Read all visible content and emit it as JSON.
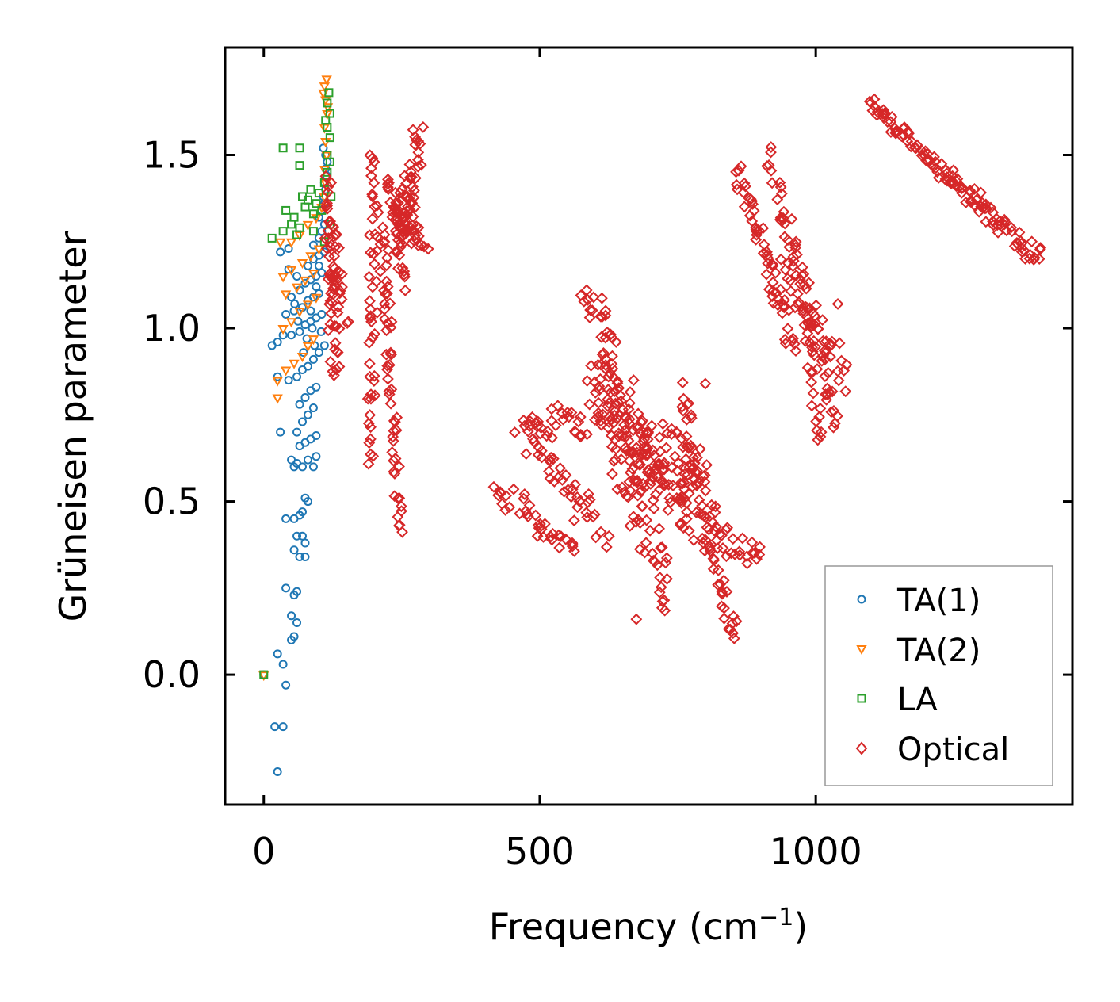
{
  "chart_data": {
    "type": "scatter",
    "title": "",
    "xlabel": "Frequency (cm",
    "xlabel_superscript": "−1",
    "xlabel_suffix": ")",
    "ylabel": "Grüneisen parameter",
    "xlim": [
      -70,
      1465
    ],
    "ylim": [
      -0.375,
      1.81
    ],
    "xticks": [
      0,
      500,
      1000
    ],
    "xtick_labels": [
      "0",
      "500",
      "1000"
    ],
    "yticks": [
      0.0,
      0.5,
      1.0,
      1.5
    ],
    "ytick_labels": [
      "0.0",
      "0.5",
      "1.0",
      "1.5"
    ],
    "grid": false,
    "legend_position": "lower-right",
    "series": [
      {
        "name": "TA(1)",
        "marker": "circle",
        "color": "#1f77b4",
        "points": [
          [
            0,
            0.0
          ],
          [
            25,
            -0.28
          ],
          [
            20,
            -0.15
          ],
          [
            35,
            -0.15
          ],
          [
            40,
            -0.03
          ],
          [
            25,
            0.06
          ],
          [
            35,
            0.03
          ],
          [
            50,
            0.1
          ],
          [
            55,
            0.11
          ],
          [
            60,
            0.15
          ],
          [
            50,
            0.17
          ],
          [
            40,
            0.25
          ],
          [
            55,
            0.23
          ],
          [
            60,
            0.24
          ],
          [
            55,
            0.36
          ],
          [
            65,
            0.34
          ],
          [
            75,
            0.34
          ],
          [
            60,
            0.4
          ],
          [
            70,
            0.4
          ],
          [
            75,
            0.38
          ],
          [
            40,
            0.45
          ],
          [
            55,
            0.45
          ],
          [
            65,
            0.46
          ],
          [
            70,
            0.47
          ],
          [
            75,
            0.51
          ],
          [
            80,
            0.5
          ],
          [
            55,
            0.6
          ],
          [
            60,
            0.61
          ],
          [
            70,
            0.6
          ],
          [
            80,
            0.62
          ],
          [
            90,
            0.6
          ],
          [
            95,
            0.63
          ],
          [
            50,
            0.62
          ],
          [
            65,
            0.66
          ],
          [
            75,
            0.67
          ],
          [
            85,
            0.68
          ],
          [
            95,
            0.69
          ],
          [
            30,
            0.7
          ],
          [
            60,
            0.7
          ],
          [
            70,
            0.73
          ],
          [
            80,
            0.75
          ],
          [
            90,
            0.77
          ],
          [
            65,
            0.78
          ],
          [
            75,
            0.8
          ],
          [
            85,
            0.82
          ],
          [
            95,
            0.83
          ],
          [
            25,
            0.86
          ],
          [
            45,
            0.85
          ],
          [
            60,
            0.86
          ],
          [
            70,
            0.88
          ],
          [
            80,
            0.89
          ],
          [
            90,
            0.91
          ],
          [
            100,
            0.93
          ],
          [
            110,
            0.95
          ],
          [
            15,
            0.95
          ],
          [
            25,
            0.96
          ],
          [
            35,
            0.98
          ],
          [
            50,
            0.98
          ],
          [
            65,
            0.99
          ],
          [
            75,
            1.01
          ],
          [
            85,
            1.02
          ],
          [
            95,
            1.03
          ],
          [
            105,
            1.04
          ],
          [
            40,
            1.04
          ],
          [
            55,
            1.05
          ],
          [
            70,
            1.06
          ],
          [
            80,
            1.08
          ],
          [
            90,
            1.09
          ],
          [
            100,
            1.1
          ],
          [
            50,
            1.09
          ],
          [
            65,
            1.11
          ],
          [
            75,
            1.13
          ],
          [
            85,
            1.14
          ],
          [
            95,
            1.15
          ],
          [
            105,
            1.16
          ],
          [
            45,
            1.17
          ],
          [
            60,
            1.15
          ],
          [
            80,
            1.18
          ],
          [
            90,
            1.2
          ],
          [
            100,
            1.21
          ],
          [
            110,
            1.22
          ],
          [
            30,
            1.22
          ],
          [
            45,
            1.23
          ],
          [
            90,
            1.24
          ],
          [
            100,
            1.26
          ],
          [
            105,
            1.28
          ],
          [
            110,
            1.3
          ],
          [
            100,
            1.32
          ],
          [
            105,
            1.34
          ],
          [
            110,
            1.36
          ],
          [
            108,
            1.38
          ],
          [
            112,
            1.4
          ],
          [
            110,
            1.42
          ],
          [
            114,
            1.44
          ],
          [
            112,
            1.46
          ],
          [
            115,
            1.48
          ],
          [
            112,
            1.5
          ],
          [
            108,
            1.52
          ],
          [
            100,
            1.18
          ],
          [
            95,
            1.12
          ],
          [
            85,
            1.05
          ],
          [
            78,
            0.97
          ],
          [
            92,
            0.95
          ],
          [
            104,
            0.99
          ],
          [
            88,
            1.0
          ],
          [
            72,
            0.93
          ],
          [
            62,
            1.02
          ],
          [
            56,
            1.07
          ]
        ]
      },
      {
        "name": "TA(2)",
        "marker": "triangle-down",
        "color": "#ff7f0e",
        "points": [
          [
            0,
            0.0
          ],
          [
            25,
            0.8
          ],
          [
            25,
            0.85
          ],
          [
            40,
            0.88
          ],
          [
            55,
            0.9
          ],
          [
            70,
            0.92
          ],
          [
            80,
            0.95
          ],
          [
            90,
            0.97
          ],
          [
            35,
            1.0
          ],
          [
            50,
            1.02
          ],
          [
            65,
            1.05
          ],
          [
            80,
            1.07
          ],
          [
            95,
            1.09
          ],
          [
            40,
            1.1
          ],
          [
            60,
            1.12
          ],
          [
            75,
            1.14
          ],
          [
            90,
            1.16
          ],
          [
            35,
            1.15
          ],
          [
            50,
            1.17
          ],
          [
            70,
            1.19
          ],
          [
            85,
            1.21
          ],
          [
            100,
            1.23
          ],
          [
            30,
            1.25
          ],
          [
            50,
            1.25
          ],
          [
            65,
            1.27
          ],
          [
            80,
            1.3
          ],
          [
            95,
            1.32
          ],
          [
            105,
            1.35
          ],
          [
            110,
            1.38
          ],
          [
            112,
            1.42
          ],
          [
            110,
            1.46
          ],
          [
            114,
            1.5
          ],
          [
            112,
            1.54
          ],
          [
            110,
            1.58
          ],
          [
            115,
            1.62
          ],
          [
            112,
            1.66
          ],
          [
            110,
            1.7
          ],
          [
            114,
            1.72
          ],
          [
            108,
            1.68
          ],
          [
            116,
            1.64
          ]
        ]
      },
      {
        "name": "LA",
        "marker": "square",
        "color": "#2ca02c",
        "points": [
          [
            0,
            0.0
          ],
          [
            15,
            1.26
          ],
          [
            35,
            1.28
          ],
          [
            50,
            1.3
          ],
          [
            40,
            1.34
          ],
          [
            55,
            1.32
          ],
          [
            65,
            1.29
          ],
          [
            75,
            1.35
          ],
          [
            70,
            1.38
          ],
          [
            80,
            1.37
          ],
          [
            90,
            1.33
          ],
          [
            95,
            1.36
          ],
          [
            100,
            1.39
          ],
          [
            60,
            1.27
          ],
          [
            85,
            1.4
          ],
          [
            110,
            1.42
          ],
          [
            120,
            1.3
          ],
          [
            115,
            1.45
          ],
          [
            120,
            1.48
          ],
          [
            115,
            1.5
          ],
          [
            120,
            1.55
          ],
          [
            115,
            1.58
          ],
          [
            120,
            1.62
          ],
          [
            115,
            1.65
          ],
          [
            118,
            1.68
          ],
          [
            112,
            1.6
          ],
          [
            65,
            1.47
          ],
          [
            35,
            1.52
          ],
          [
            65,
            1.52
          ],
          [
            105,
            1.34
          ],
          [
            122,
            1.38
          ],
          [
            110,
            1.25
          ],
          [
            90,
            1.28
          ]
        ]
      },
      {
        "name": "Optical",
        "marker": "diamond",
        "color": "#d62728",
        "segments": [
          {
            "from": [
              115,
              1.42
            ],
            "to": [
              130,
              0.85
            ],
            "jitter": [
              8,
              0.06
            ],
            "count": 45
          },
          {
            "from": [
              120,
              1.3
            ],
            "to": [
              145,
              1.0
            ],
            "jitter": [
              10,
              0.06
            ],
            "count": 25
          },
          {
            "from": [
              200,
              1.48
            ],
            "to": [
              195,
              0.62
            ],
            "jitter": [
              8,
              0.05
            ],
            "count": 45
          },
          {
            "from": [
              215,
              1.32
            ],
            "to": [
              245,
              0.43
            ],
            "jitter": [
              8,
              0.05
            ],
            "count": 55
          },
          {
            "from": [
              230,
              1.38
            ],
            "to": [
              290,
              1.28
            ],
            "jitter": [
              12,
              0.06
            ],
            "count": 40
          },
          {
            "from": [
              245,
              1.25
            ],
            "to": [
              280,
              1.54
            ],
            "jitter": [
              10,
              0.06
            ],
            "count": 40
          },
          {
            "from": [
              230,
              1.4
            ],
            "to": [
              255,
              1.12
            ],
            "jitter": [
              8,
              0.05
            ],
            "count": 20
          },
          {
            "from": [
              420,
              0.54
            ],
            "to": [
              560,
              0.35
            ],
            "jitter": [
              12,
              0.04
            ],
            "count": 35
          },
          {
            "from": [
              460,
              0.71
            ],
            "to": [
              620,
              0.4
            ],
            "jitter": [
              18,
              0.05
            ],
            "count": 45
          },
          {
            "from": [
              470,
              0.72
            ],
            "to": [
              650,
              0.75
            ],
            "jitter": [
              20,
              0.05
            ],
            "count": 40
          },
          {
            "from": [
              585,
              1.11
            ],
            "to": [
              700,
              0.55
            ],
            "jitter": [
              15,
              0.06
            ],
            "count": 60
          },
          {
            "from": [
              600,
              0.9
            ],
            "to": [
              730,
              0.2
            ],
            "jitter": [
              20,
              0.06
            ],
            "count": 70
          },
          {
            "from": [
              650,
              0.7
            ],
            "to": [
              790,
              0.55
            ],
            "jitter": [
              20,
              0.1
            ],
            "count": 80
          },
          {
            "from": [
              760,
              0.8
            ],
            "to": [
              850,
              0.12
            ],
            "jitter": [
              12,
              0.05
            ],
            "count": 55
          },
          {
            "from": [
              820,
              0.4
            ],
            "to": [
              900,
              0.33
            ],
            "jitter": [
              12,
              0.04
            ],
            "count": 20
          },
          {
            "from": [
              690,
              0.6
            ],
            "to": [
              810,
              0.4
            ],
            "jitter": [
              18,
              0.07
            ],
            "count": 45
          },
          {
            "from": [
              860,
              1.46
            ],
            "to": [
              960,
              0.95
            ],
            "jitter": [
              10,
              0.04
            ],
            "count": 55
          },
          {
            "from": [
              915,
              1.5
            ],
            "to": [
              1040,
              0.72
            ],
            "jitter": [
              10,
              0.04
            ],
            "count": 60
          },
          {
            "from": [
              940,
              1.2
            ],
            "to": [
              1050,
              0.85
            ],
            "jitter": [
              14,
              0.06
            ],
            "count": 40
          },
          {
            "from": [
              985,
              1.0
            ],
            "to": [
              1010,
              0.7
            ],
            "jitter": [
              8,
              0.04
            ],
            "count": 20
          },
          {
            "from": [
              1100,
              1.65
            ],
            "to": [
              1250,
              1.42
            ],
            "jitter": [
              6,
              0.02
            ],
            "count": 55
          },
          {
            "from": [
              1240,
              1.44
            ],
            "to": [
              1405,
              1.2
            ],
            "jitter": [
              10,
              0.03
            ],
            "count": 60
          }
        ],
        "points": [
          [
            245,
            0.43
          ],
          [
            850,
            0.12
          ],
          [
            675,
            0.16
          ],
          [
            1040,
            1.07
          ],
          [
            1100,
            1.65
          ],
          [
            1405,
            1.2
          ],
          [
            200,
            1.48
          ],
          [
            1010,
            0.7
          ],
          [
            800,
            0.84
          ],
          [
            670,
            0.85
          ],
          [
            585,
            1.11
          ],
          [
            280,
            1.54
          ]
        ]
      }
    ]
  }
}
